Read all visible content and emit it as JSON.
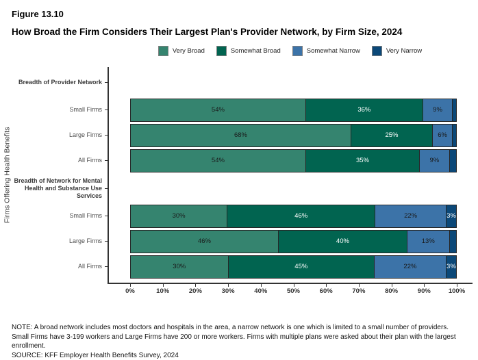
{
  "figure_number": "Figure 13.10",
  "title": "How Broad the Firm Considers Their Largest Plan's Provider Network, by Firm Size, 2024",
  "chart_data": {
    "type": "bar",
    "stacked": true,
    "orientation": "horizontal",
    "title": "How Broad the Firm Considers Their Largest Plan's Provider Network, by Firm Size, 2024",
    "xlabel": "",
    "ylabel": "Firms Offering Health Benefits",
    "xlim": [
      0,
      100
    ],
    "x_ticks": [
      "0%",
      "10%",
      "20%",
      "30%",
      "40%",
      "50%",
      "60%",
      "70%",
      "80%",
      "90%",
      "100%"
    ],
    "legend_position": "top",
    "grid": false,
    "series": [
      {
        "name": "Very Broad",
        "color": "#35846F",
        "label_color": "#1a1a1a"
      },
      {
        "name": "Somewhat Broad",
        "color": "#016450",
        "label_color": "#ffffff"
      },
      {
        "name": "Somewhat Narrow",
        "color": "#3C73A8",
        "label_color": "#1a1a1a"
      },
      {
        "name": "Very Narrow",
        "color": "#0B4878",
        "label_color": "#ffffff"
      }
    ],
    "groups": [
      {
        "header_lines": [
          "Breadth of Provider Network"
        ],
        "rows": [
          {
            "category": "Small Firms",
            "values": [
              54,
              36,
              9,
              1
            ],
            "labels": [
              "54%",
              "36%",
              "9%",
              ""
            ]
          },
          {
            "category": "Large Firms",
            "values": [
              68,
              25,
              6,
              1
            ],
            "labels": [
              "68%",
              "25%",
              "6%",
              ""
            ]
          },
          {
            "category": "All Firms",
            "values": [
              54,
              35,
              9,
              2
            ],
            "labels": [
              "54%",
              "35%",
              "9%",
              ""
            ]
          }
        ]
      },
      {
        "header_lines": [
          "Breadth of Network for Mental",
          "Health and Substance Use",
          "Services"
        ],
        "rows": [
          {
            "category": "Small Firms",
            "values": [
              30,
              46,
              22,
              3
            ],
            "labels": [
              "30%",
              "46%",
              "22%",
              "3%"
            ]
          },
          {
            "category": "Large Firms",
            "values": [
              46,
              40,
              13,
              2
            ],
            "labels": [
              "46%",
              "40%",
              "13%",
              ""
            ]
          },
          {
            "category": "All Firms",
            "values": [
              30,
              45,
              22,
              3
            ],
            "labels": [
              "30%",
              "45%",
              "22%",
              "3%"
            ]
          }
        ]
      }
    ]
  },
  "notes": {
    "line1": "NOTE: A broad network includes most doctors and hospitals in the area, a narrow network is one which is limited to a small number of providers.",
    "line2": "Small Firms have 3-199 workers and Large Firms have 200 or more workers.  Firms with multiple plans were asked about their plan with the largest enrollment.",
    "source": "SOURCE: KFF Employer Health Benefits Survey, 2024"
  }
}
